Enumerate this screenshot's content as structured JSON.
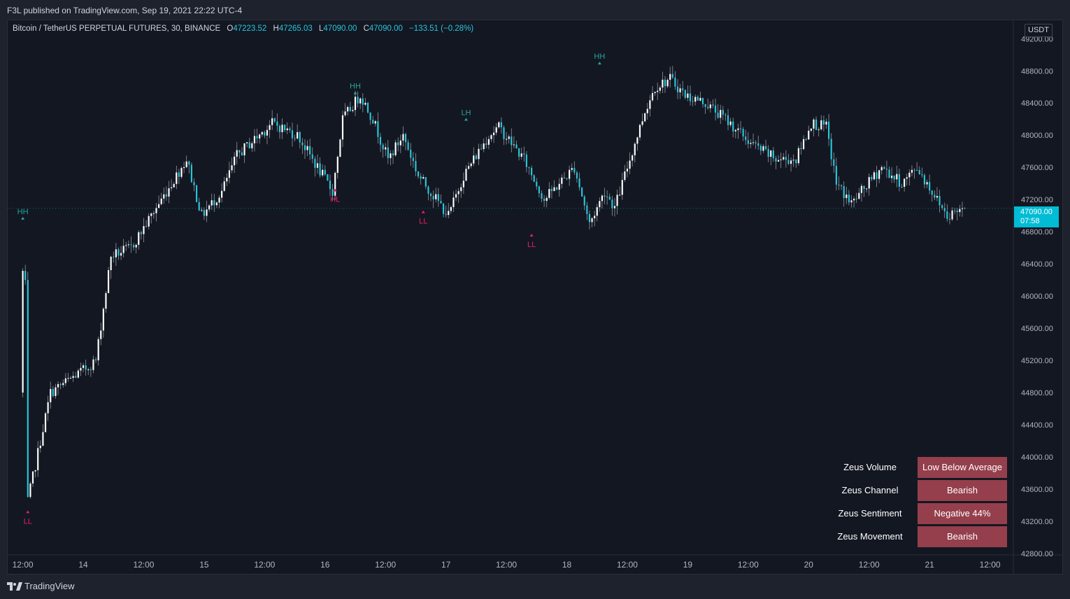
{
  "header": {
    "published_text": "F3L published on TradingView.com, Sep 19, 2021 22:22 UTC-4"
  },
  "legend": {
    "symbol": "Bitcoin / TetherUS PERPETUAL FUTURES, 30, BINANCE",
    "o_label": "O",
    "o_value": "47223.52",
    "h_label": "H",
    "h_value": "47265.03",
    "l_label": "L",
    "l_value": "47090.00",
    "c_label": "C",
    "c_value": "47090.00",
    "change": "−133.51 (−0.28%)"
  },
  "price_axis": {
    "currency": "USDT",
    "current_price": "47090.00",
    "countdown": "07:58"
  },
  "colors": {
    "up": "#ffffff",
    "down": "#26c6da",
    "wick": "#9598a1",
    "high_marker": "#26a69a",
    "low_marker": "#e91e63",
    "zeus_bg": "#953f4c",
    "background": "#131722"
  },
  "zeus_table": [
    {
      "label": "Zeus Volume",
      "value": "Low Below Average"
    },
    {
      "label": "Zeus Channel",
      "value": "Bearish"
    },
    {
      "label": "Zeus Sentiment",
      "value": "Negative 44%"
    },
    {
      "label": "Zeus Movement",
      "value": "Bearish"
    }
  ],
  "footer": {
    "brand": "TradingView",
    "brand_icon": "tradingview-logo-icon"
  },
  "chart_data": {
    "type": "candlestick",
    "symbol": "BTCUSDT.P",
    "timeframe": "30",
    "y_ticks": [
      "49200.00",
      "48800.00",
      "48400.00",
      "48000.00",
      "47600.00",
      "47200.00",
      "46800.00",
      "46400.00",
      "46000.00",
      "45600.00",
      "45200.00",
      "44800.00",
      "44400.00",
      "44000.00",
      "43600.00",
      "43200.00",
      "42800.00"
    ],
    "ylim": [
      42790,
      49420
    ],
    "x_ticks": [
      "12:00",
      "14",
      "12:00",
      "15",
      "12:00",
      "16",
      "12:00",
      "17",
      "12:00",
      "18",
      "12:00",
      "19",
      "12:00",
      "20",
      "12:00",
      "21",
      "12:00"
    ],
    "x_tick_bars": [
      0,
      24,
      48,
      72,
      96,
      120,
      144,
      168,
      192,
      216,
      240,
      264,
      288,
      312,
      336,
      360,
      384
    ],
    "xlim_bars": [
      -6,
      393
    ],
    "path_points": [
      [
        0,
        44800
      ],
      [
        1,
        46300
      ],
      [
        2,
        43300
      ],
      [
        12,
        44800
      ],
      [
        26,
        45100
      ],
      [
        30,
        45200
      ],
      [
        36,
        46500
      ],
      [
        44,
        46600
      ],
      [
        54,
        47100
      ],
      [
        66,
        47700
      ],
      [
        72,
        47000
      ],
      [
        80,
        47300
      ],
      [
        86,
        47750
      ],
      [
        100,
        48150
      ],
      [
        110,
        48000
      ],
      [
        124,
        47300
      ],
      [
        128,
        48200
      ],
      [
        135,
        48500
      ],
      [
        140,
        48200
      ],
      [
        146,
        47700
      ],
      [
        152,
        48000
      ],
      [
        158,
        47500
      ],
      [
        170,
        47000
      ],
      [
        176,
        47500
      ],
      [
        186,
        48000
      ],
      [
        190,
        48100
      ],
      [
        200,
        47700
      ],
      [
        208,
        47200
      ],
      [
        220,
        47600
      ],
      [
        226,
        46900
      ],
      [
        232,
        47300
      ],
      [
        236,
        47100
      ],
      [
        242,
        47700
      ],
      [
        248,
        48300
      ],
      [
        252,
        48600
      ],
      [
        258,
        48700
      ],
      [
        264,
        48500
      ],
      [
        272,
        48400
      ],
      [
        280,
        48200
      ],
      [
        290,
        47900
      ],
      [
        300,
        47700
      ],
      [
        308,
        47700
      ],
      [
        314,
        48150
      ],
      [
        320,
        48100
      ],
      [
        324,
        47400
      ],
      [
        330,
        47150
      ],
      [
        342,
        47600
      ],
      [
        350,
        47400
      ],
      [
        356,
        47600
      ],
      [
        364,
        47200
      ],
      [
        368,
        47000
      ],
      [
        374,
        47100
      ]
    ],
    "pivots": [
      {
        "label": "HH",
        "bar": 0,
        "price": 46950,
        "kind": "high"
      },
      {
        "label": "LL",
        "bar": 2,
        "price": 43300,
        "kind": "low"
      },
      {
        "label": "HL",
        "bar": 124,
        "price": 47300,
        "kind": "low"
      },
      {
        "label": "HH",
        "bar": 132,
        "price": 48510,
        "kind": "high"
      },
      {
        "label": "LL",
        "bar": 159,
        "price": 47030,
        "kind": "low"
      },
      {
        "label": "LH",
        "bar": 176,
        "price": 48180,
        "kind": "high"
      },
      {
        "label": "LL",
        "bar": 202,
        "price": 46740,
        "kind": "low"
      },
      {
        "label": "HH",
        "bar": 229,
        "price": 48880,
        "kind": "high"
      }
    ]
  }
}
